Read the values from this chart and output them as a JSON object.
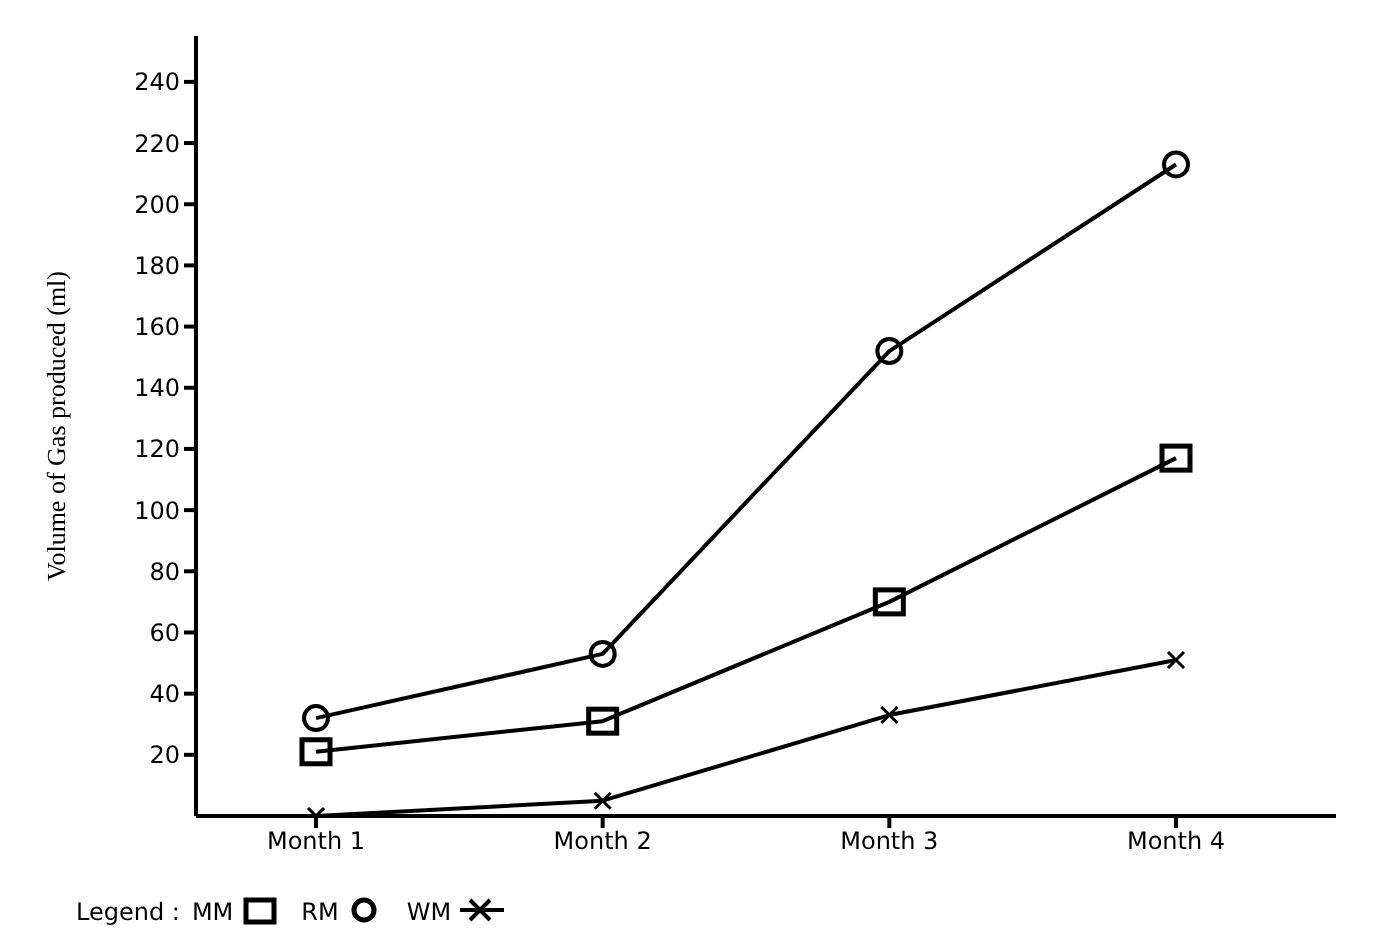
{
  "chart_data": {
    "type": "line",
    "ylabel": "Volume of Gas produced (ml)",
    "legend_title": "Legend :",
    "categories": [
      "Month 1",
      "Month 2",
      "Month 3",
      "Month 4"
    ],
    "series": [
      {
        "name": "MM",
        "color": "#000000",
        "marker": "square",
        "values": [
          21,
          31,
          70,
          117
        ]
      },
      {
        "name": "RM",
        "color": "#000000",
        "marker": "circle",
        "values": [
          32,
          53,
          152,
          213
        ]
      },
      {
        "name": "WM",
        "color": "#000000",
        "marker": "cross",
        "values": [
          0,
          5,
          33,
          51
        ]
      }
    ],
    "ylim": [
      0,
      255
    ],
    "yticks": [
      20,
      40,
      60,
      80,
      100,
      120,
      140,
      160,
      180,
      200,
      220,
      240
    ],
    "grid": false,
    "legend": "bottom",
    "line_style": "solid"
  }
}
